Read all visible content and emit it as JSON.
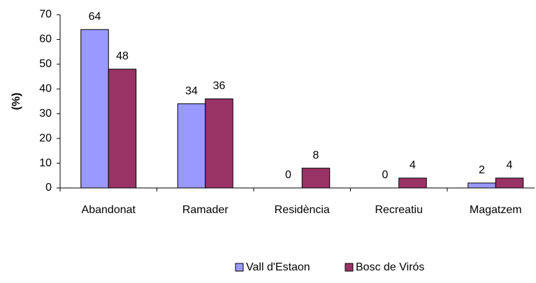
{
  "chart_data": {
    "type": "bar",
    "y_label": "(%)",
    "categories": [
      "Abandonat",
      "Ramader",
      "Residència",
      "Recreatiu",
      "Magatzem"
    ],
    "series": [
      {
        "name": "Vall d'Estaon",
        "color": "#9999ff",
        "values": [
          64,
          34,
          0,
          0,
          2
        ]
      },
      {
        "name": "Bosc de Virós",
        "color": "#993366",
        "values": [
          48,
          36,
          8,
          4,
          4
        ]
      }
    ],
    "ylim": [
      0,
      70
    ],
    "yticks": [
      0,
      10,
      20,
      30,
      40,
      50,
      60,
      70
    ],
    "grid": false,
    "legend": "bottom"
  }
}
